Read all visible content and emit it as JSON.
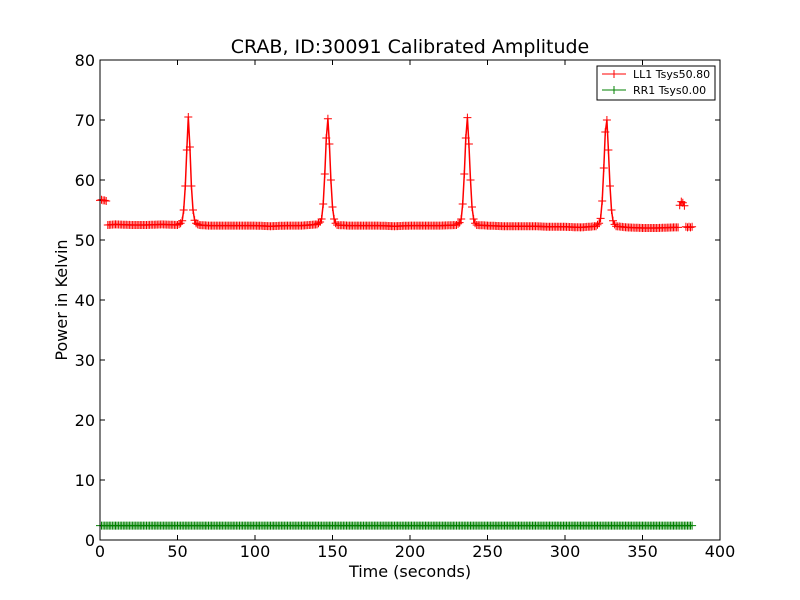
{
  "chart_data": {
    "type": "line",
    "title": "CRAB, ID:30091 Calibrated Amplitude",
    "xlabel": "Time (seconds)",
    "ylabel": "Power in Kelvin",
    "xlim": [
      0,
      400
    ],
    "ylim": [
      0,
      80
    ],
    "xticks": [
      0,
      50,
      100,
      150,
      200,
      250,
      300,
      350,
      400
    ],
    "yticks": [
      0,
      10,
      20,
      30,
      40,
      50,
      60,
      70,
      80
    ],
    "grid": false,
    "legend_position": "top-right",
    "series": [
      {
        "name": "LL1 Tsys50.80",
        "color": "#ff0000",
        "marker": "plus",
        "baseline": 52.4,
        "segments": [
          {
            "x": [
              0,
              1,
              2,
              3,
              4
            ],
            "y": [
              56.6,
              56.7,
              56.6,
              56.6,
              56.5
            ]
          },
          {
            "x": [
              5,
              10,
              20,
              30,
              40,
              50,
              52,
              53,
              54,
              55,
              56,
              57,
              58,
              59,
              60,
              61,
              62,
              63,
              64,
              70,
              80,
              90,
              100,
              110,
              120,
              130,
              140,
              142,
              143,
              144,
              145,
              146,
              147,
              148,
              149,
              150,
              151,
              152,
              153,
              160,
              170,
              180,
              190,
              200,
              210,
              220,
              230,
              232,
              233,
              234,
              235,
              236,
              237,
              238,
              239,
              240,
              241,
              242,
              243,
              250,
              260,
              270,
              280,
              290,
              300,
              310,
              320,
              322,
              323,
              324,
              325,
              326,
              327,
              328,
              329,
              330,
              331,
              332,
              333,
              340,
              350,
              360,
              370,
              373
            ],
            "y": [
              52.5,
              52.6,
              52.5,
              52.5,
              52.6,
              52.5,
              52.8,
              53.2,
              55.0,
              59.0,
              65.0,
              70.5,
              65.5,
              59.0,
              55.0,
              53.3,
              52.8,
              52.6,
              52.5,
              52.4,
              52.4,
              52.4,
              52.4,
              52.3,
              52.4,
              52.4,
              52.6,
              53.0,
              53.5,
              56.0,
              61.0,
              67.0,
              70.2,
              66.0,
              60.0,
              55.5,
              53.5,
              52.8,
              52.5,
              52.4,
              52.4,
              52.4,
              52.3,
              52.4,
              52.4,
              52.4,
              52.5,
              52.9,
              53.5,
              56.0,
              61.0,
              67.0,
              70.4,
              66.0,
              60.0,
              55.5,
              53.5,
              52.8,
              52.5,
              52.4,
              52.3,
              52.3,
              52.3,
              52.2,
              52.2,
              52.1,
              52.3,
              52.8,
              53.6,
              56.5,
              62.0,
              68.0,
              70.0,
              65.0,
              59.0,
              55.0,
              53.2,
              52.6,
              52.3,
              52.1,
              52.0,
              52.0,
              52.1,
              52.1
            ]
          },
          {
            "x": [
              374,
              375,
              376,
              377
            ],
            "y": [
              55.8,
              56.4,
              56.2,
              55.7
            ]
          },
          {
            "x": [
              378,
              379,
              380,
              381,
              382
            ],
            "y": [
              52.2,
              52.1,
              52.2,
              52.1,
              52.2
            ]
          }
        ]
      },
      {
        "name": "RR1 Tsys0.00",
        "color": "#008000",
        "marker": "plus",
        "baseline": 2.4,
        "segments": [
          {
            "x": [
              0,
              50,
              100,
              150,
              200,
              250,
              300,
              350,
              382
            ],
            "y": [
              2.4,
              2.4,
              2.4,
              2.4,
              2.4,
              2.4,
              2.4,
              2.4,
              2.4
            ]
          }
        ]
      }
    ]
  }
}
